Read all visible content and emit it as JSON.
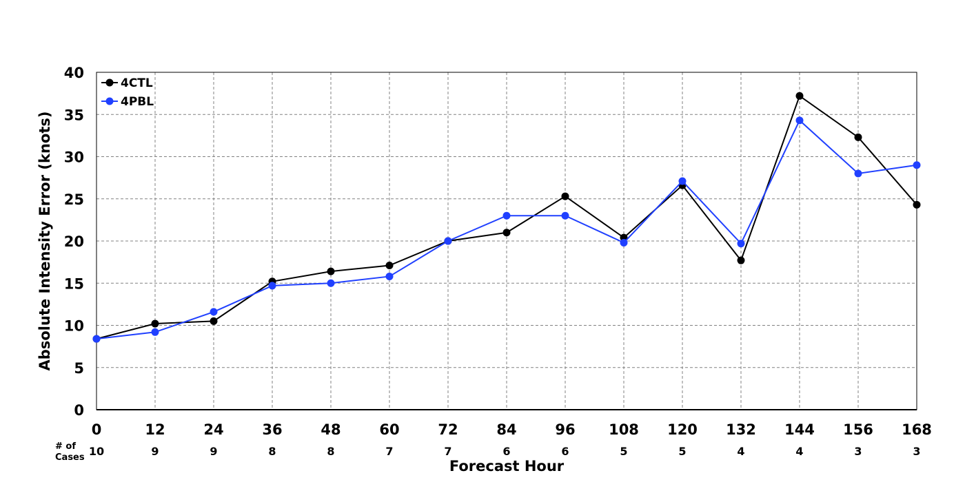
{
  "chart_data": {
    "type": "line",
    "title": "",
    "xlabel": "Forecast Hour",
    "ylabel": "Absolute Intensity Error (knots)",
    "x": [
      0,
      12,
      24,
      36,
      48,
      60,
      72,
      84,
      96,
      108,
      120,
      132,
      144,
      156,
      168
    ],
    "xlim": [
      0,
      168
    ],
    "ylim": [
      0,
      40
    ],
    "yticks": [
      0,
      5,
      10,
      15,
      20,
      25,
      30,
      35,
      40
    ],
    "grid": true,
    "legend_position": "top-left",
    "cases_label": "# of Cases",
    "cases_label_lines": [
      "# of",
      "Cases"
    ],
    "cases": [
      10,
      9,
      9,
      8,
      8,
      7,
      7,
      6,
      6,
      5,
      5,
      4,
      4,
      3,
      3
    ],
    "series": [
      {
        "name": "4CTL",
        "color": "#000000",
        "values": [
          8.4,
          10.2,
          10.5,
          15.2,
          16.4,
          17.1,
          20.0,
          21.0,
          25.3,
          20.4,
          26.6,
          17.7,
          37.2,
          32.3,
          24.3
        ]
      },
      {
        "name": "4PBL",
        "color": "#2040ff",
        "values": [
          8.4,
          9.2,
          11.6,
          14.7,
          15.0,
          15.8,
          20.0,
          23.0,
          23.0,
          19.8,
          27.1,
          19.7,
          34.3,
          28.0,
          29.0
        ]
      }
    ]
  }
}
